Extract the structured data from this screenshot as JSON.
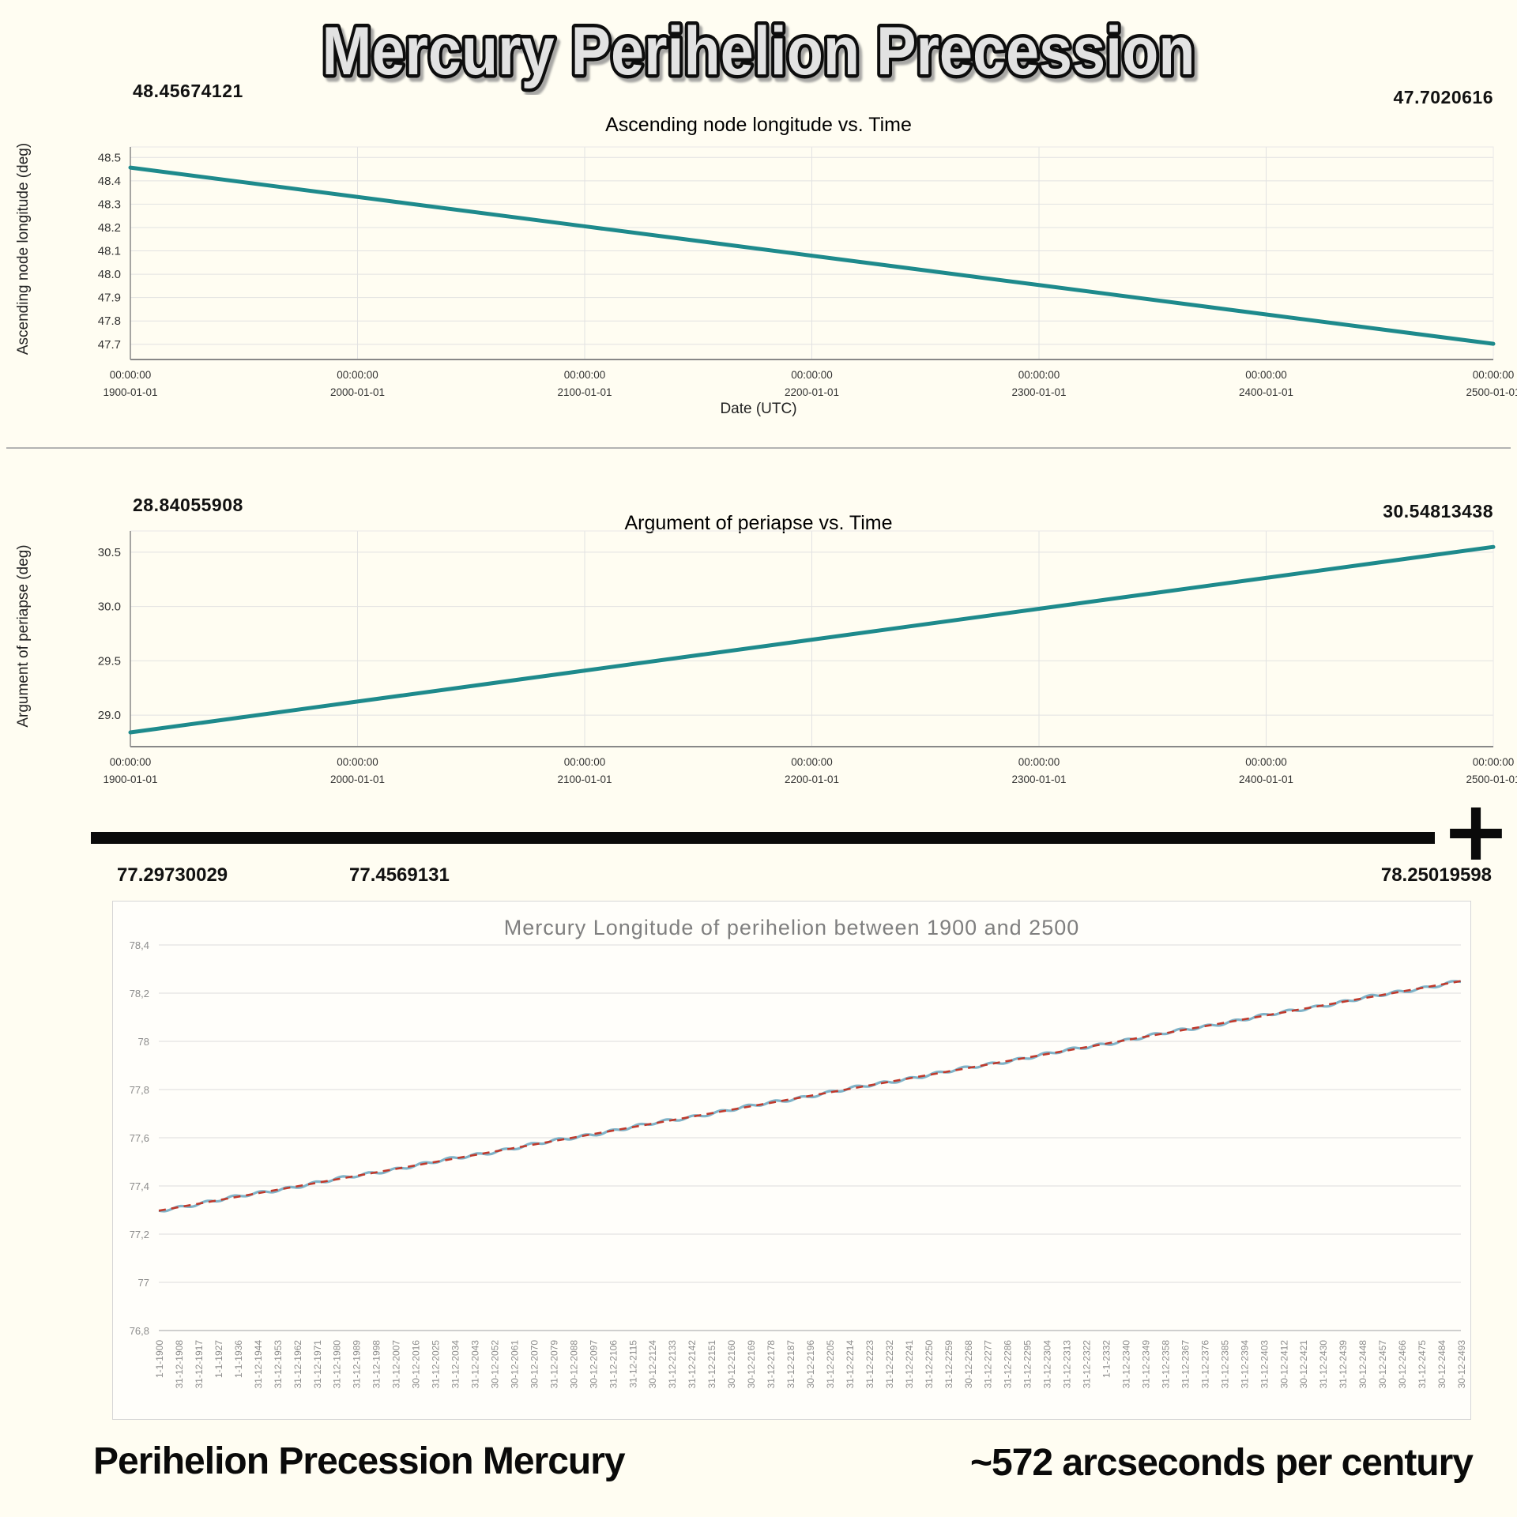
{
  "page": {
    "title": "Mercury Perihelion Precession",
    "plus_sign": "+",
    "caption_left": "Perihelion Precession Mercury",
    "caption_right": "~572 arcseconds per century",
    "colors": {
      "background": "#fffdf2",
      "teal": "#1e8a8c",
      "excel_blue": "#7fb3c8",
      "excel_red": "#c0392b"
    }
  },
  "chart_data": [
    {
      "type": "line",
      "style": "plotly",
      "title": "Ascending node longitude vs. Time",
      "ylabel": "Ascending node longitude (deg)",
      "xlabel": "Date (UTC)",
      "start_label": "48.45674121",
      "end_label": "47.7020616",
      "x": [
        1900,
        2000,
        2100,
        2200,
        2300,
        2400,
        2500
      ],
      "y": [
        48.4567,
        48.331,
        48.2052,
        48.0795,
        47.9537,
        47.8279,
        47.7021
      ],
      "xlim": [
        1900,
        2500
      ],
      "ylim": [
        47.635,
        48.545
      ],
      "xtick_time": "00:00:00",
      "xtick_dates": [
        "1900-01-01",
        "2000-01-01",
        "2100-01-01",
        "2200-01-01",
        "2300-01-01",
        "2400-01-01",
        "2500-01-01"
      ],
      "xtick_values": [
        1900,
        2000,
        2100,
        2200,
        2300,
        2400,
        2500
      ],
      "ytick_values": [
        48.5,
        48.4,
        48.3,
        48.2,
        48.1,
        48.0,
        47.9,
        47.8,
        47.7
      ],
      "ytick_labels": [
        "48.5",
        "48.4",
        "48.3",
        "48.2",
        "48.1",
        "48.0",
        "47.9",
        "47.8",
        "47.7"
      ],
      "grid": true,
      "legend": "none",
      "colors": {
        "line": "#1e8a8c",
        "grid": "#e2e2e2",
        "tick": "#333333",
        "axis": "#888888",
        "frame": "#e8e8e8"
      }
    },
    {
      "type": "line",
      "style": "plotly",
      "title": "Argument of periapse vs. Time",
      "ylabel": "Argument of periapse (deg)",
      "xlabel": "",
      "start_label": "28.84055908",
      "end_label": "30.54813438",
      "x": [
        1900,
        2000,
        2100,
        2200,
        2300,
        2400,
        2500
      ],
      "y": [
        28.8406,
        29.1252,
        29.4098,
        29.6944,
        29.979,
        30.2635,
        30.5481
      ],
      "xlim": [
        1900,
        2500
      ],
      "ylim": [
        28.71,
        30.695
      ],
      "xtick_time": "00:00:00",
      "xtick_dates": [
        "1900-01-01",
        "2000-01-01",
        "2100-01-01",
        "2200-01-01",
        "2300-01-01",
        "2400-01-01",
        "2500-01-01"
      ],
      "xtick_values": [
        1900,
        2000,
        2100,
        2200,
        2300,
        2400,
        2500
      ],
      "ytick_values": [
        30.5,
        30.0,
        29.5,
        29.0
      ],
      "ytick_labels": [
        "30.5",
        "30.0",
        "29.5",
        "29.0"
      ],
      "grid": true,
      "legend": "none",
      "colors": {
        "line": "#1e8a8c",
        "grid": "#e2e2e2",
        "tick": "#333333",
        "axis": "#888888",
        "frame": "#e8e8e8"
      }
    },
    {
      "type": "line",
      "style": "excel",
      "title": "Mercury Longitude of perihelion between 1900 and 2500",
      "start_label": "77.29730029",
      "mid_label": "77.4569131",
      "end_label": "78.25019598",
      "x": [
        1900,
        2000,
        2100,
        2200,
        2300,
        2400,
        2500
      ],
      "y": [
        77.2973,
        77.4561,
        77.6149,
        77.7737,
        77.9326,
        78.0914,
        78.2502
      ],
      "xlim": [
        1900,
        2500
      ],
      "ylim": [
        76.8,
        78.4
      ],
      "ytick_values": [
        78.4,
        78.2,
        78.0,
        77.8,
        77.6,
        77.4,
        77.2,
        77.0,
        76.8
      ],
      "ytick_labels": [
        "78,4",
        "78,2",
        "78",
        "77,8",
        "77,6",
        "77,4",
        "77,2",
        "77",
        "76,8"
      ],
      "xtick_labels": [
        "1-1-1900",
        "31-12-1908",
        "31-12-1917",
        "1-1-1927",
        "1-1-1936",
        "31-12-1944",
        "31-12-1953",
        "31-12-1962",
        "31-12-1971",
        "31-12-1980",
        "31-12-1989",
        "31-12-1998",
        "31-12-2007",
        "30-12-2016",
        "31-12-2025",
        "31-12-2034",
        "31-12-2043",
        "30-12-2052",
        "30-12-2061",
        "30-12-2070",
        "31-12-2079",
        "30-12-2088",
        "30-12-2097",
        "31-12-2106",
        "31-12-2115",
        "30-12-2124",
        "31-12-2133",
        "31-12-2142",
        "31-12-2151",
        "30-12-2160",
        "30-12-2169",
        "31-12-2178",
        "31-12-2187",
        "30-12-2196",
        "31-12-2205",
        "31-12-2214",
        "31-12-2223",
        "31-12-2232",
        "31-12-2241",
        "31-12-2250",
        "31-12-2259",
        "30-12-2268",
        "31-12-2277",
        "31-12-2286",
        "31-12-2295",
        "31-12-2304",
        "31-12-2313",
        "31-12-2322",
        "1-1-2332",
        "31-12-2340",
        "31-12-2349",
        "31-12-2358",
        "31-12-2367",
        "31-12-2376",
        "31-12-2385",
        "31-12-2394",
        "31-12-2403",
        "30-12-2412",
        "30-12-2421",
        "31-12-2430",
        "31-12-2439",
        "30-12-2448",
        "30-12-2457",
        "30-12-2466",
        "31-12-2475",
        "30-12-2484",
        "30-12-2493"
      ],
      "grid": "horizontal-only",
      "legend": "none",
      "colors": {
        "line": "#7fb3c8",
        "trend": "#c0392b",
        "grid": "#dcdcdc",
        "tick": "#8c8c8c",
        "axis": "#bfbfbf"
      }
    }
  ]
}
